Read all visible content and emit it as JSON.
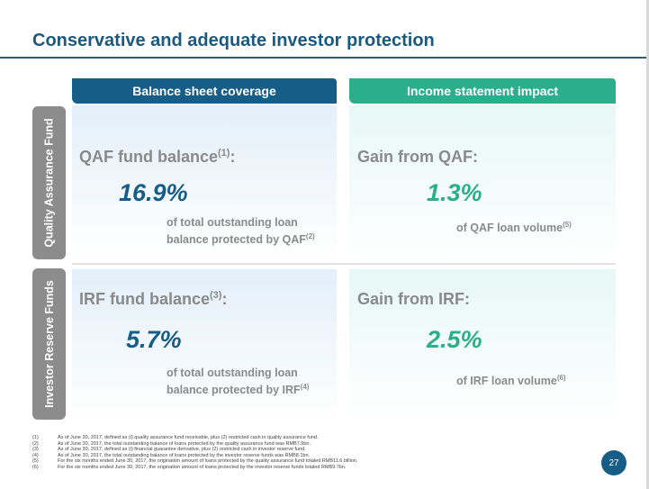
{
  "title": "Conservative and adequate investor protection",
  "columns": {
    "left": "Balance sheet coverage",
    "right": "Income statement impact"
  },
  "rows": {
    "top_label": "Quality Assurance Fund",
    "bottom_label": "Investor Reserve Funds"
  },
  "cells": {
    "qaf_balance": {
      "label": "QAF fund balance",
      "label_sup": "(1)",
      "label_suffix": ":",
      "value": "16.9%",
      "desc_line1": "of total outstanding loan",
      "desc_line2": "balance protected by QAF",
      "desc_sup": "(2)"
    },
    "qaf_gain": {
      "label": "Gain from QAF:",
      "value": "1.3%",
      "desc": "of QAF loan volume",
      "desc_sup": "(5)"
    },
    "irf_balance": {
      "label": "IRF fund balance",
      "label_sup": "(3)",
      "label_suffix": ":",
      "value": "5.7%",
      "desc_line1": "of total outstanding loan",
      "desc_line2": "balance protected by IRF",
      "desc_sup": "(4)"
    },
    "irf_gain": {
      "label": "Gain from IRF:",
      "value": "2.5%",
      "desc": "of IRF loan volume",
      "desc_sup": "(6)"
    }
  },
  "footnotes": [
    {
      "num": "(1)",
      "text": "As of June 30, 2017, defined as (i) quality assurance fund receivable, plus (2) restricted cash in quality assurance fund."
    },
    {
      "num": "(2)",
      "text": "As of June 30, 2017, the total outstanding balance of loans protected by the quality assurance fund was RMB7.9bn."
    },
    {
      "num": "(3)",
      "text": "As of June 30, 2017, defined as (i) financial guarantee derivative, plus (2) restricted cash in investor reserve fund."
    },
    {
      "num": "(4)",
      "text": "As of June 30, 2017, the total outstanding balance of loans protected by the investor reserve funds was RMB8.1bn."
    },
    {
      "num": "(5)",
      "text": "For the six months ended June 30, 2017, the origination amount of loans protected by the quality assurance fund totaled RMB11.6 billion."
    },
    {
      "num": "(6)",
      "text": "For the six months ended June 30, 2017, the origination amount of loans protected by the investor reserve funds totaled RMB9.7bn."
    }
  ],
  "page_number": "27",
  "colors": {
    "primary_blue": "#165d87",
    "accent_green": "#2aae8c",
    "label_gray": "#8a8a8a"
  }
}
